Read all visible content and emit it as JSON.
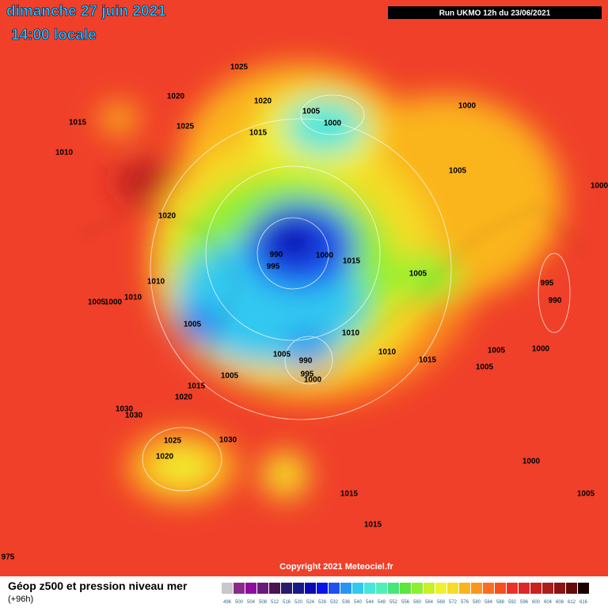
{
  "header": {
    "date": "dimanche 27 juin 2021",
    "time": "14:00 locale",
    "run": "Run UKMO 12h du 23/06/2021"
  },
  "copyright": "Copyright 2021 Meteociel.fr",
  "legend": {
    "title": "Géop z500 et pression niveau mer",
    "lead": "(+96h)",
    "scale": [
      496,
      500,
      504,
      508,
      512,
      516,
      520,
      524,
      528,
      532,
      536,
      540,
      544,
      548,
      552,
      556,
      560,
      564,
      568,
      572,
      576,
      580,
      584,
      588,
      592,
      596,
      600,
      604,
      608,
      612,
      616
    ],
    "colors": [
      "#c8c8c8",
      "#8a2b8a",
      "#8e0c9e",
      "#6a1a7a",
      "#4a1550",
      "#2a1a6a",
      "#18188a",
      "#0a0ab4",
      "#0a14e6",
      "#1e50f0",
      "#2896f0",
      "#32c8f0",
      "#46e6dc",
      "#50f0b4",
      "#46e678",
      "#5ae63c",
      "#8cf032",
      "#c8f028",
      "#f0f032",
      "#f5dc28",
      "#fab41e",
      "#fa961e",
      "#fa6e1e",
      "#f5501e",
      "#eb3228",
      "#dc2828",
      "#c8231e",
      "#aa1e1e",
      "#8c1414",
      "#640a0a",
      "#140000"
    ]
  },
  "isobar_labels": [
    "1025",
    "1020",
    "1020",
    "1015",
    "1025",
    "1015",
    "1005",
    "1000",
    "1000",
    "1010",
    "1005",
    "1000",
    "1020",
    "990",
    "1000",
    "1015",
    "995",
    "1005",
    "1010",
    "1010",
    "1005",
    "1000",
    "995",
    "990",
    "1005",
    "1010",
    "1005",
    "990",
    "1010",
    "1015",
    "1005",
    "1000",
    "1005",
    "995",
    "1000",
    "1005",
    "1015",
    "1020",
    "1030",
    "1030",
    "1025",
    "1030",
    "1020",
    "1000",
    "1015",
    "1005",
    "1015",
    "975"
  ]
}
